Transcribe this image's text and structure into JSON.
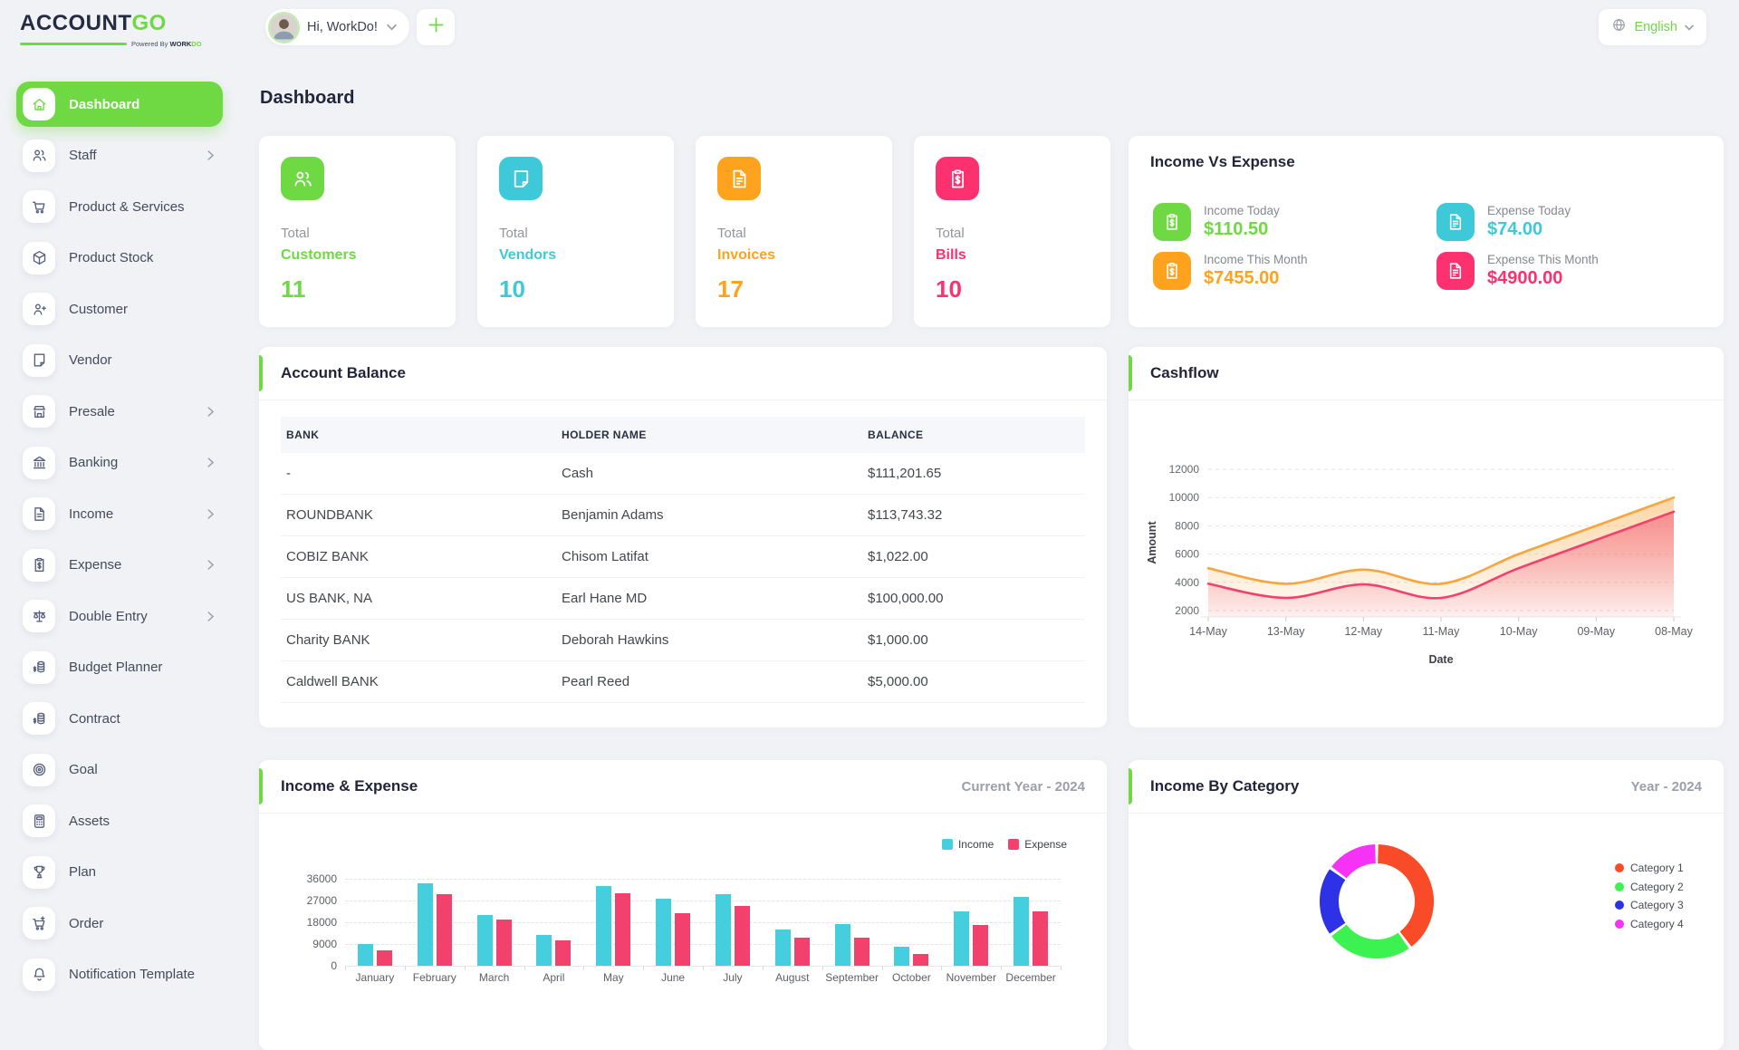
{
  "header": {
    "logo_account": "ACCOUNT",
    "logo_go": "GO",
    "logo_powered_prefix": "Powered By ",
    "logo_powered_brand": "WORK",
    "logo_powered_brand2": "DO",
    "greeting": "Hi, WorkDo!",
    "language_label": "English"
  },
  "page_title": "Dashboard",
  "sidebar": {
    "items": [
      {
        "label": "Dashboard",
        "icon": "home-icon",
        "active": true,
        "has_submenu": false
      },
      {
        "label": "Staff",
        "icon": "users-icon",
        "active": false,
        "has_submenu": true
      },
      {
        "label": "Product & Services",
        "icon": "cart-icon",
        "active": false,
        "has_submenu": false
      },
      {
        "label": "Product Stock",
        "icon": "cube-icon",
        "active": false,
        "has_submenu": false
      },
      {
        "label": "Customer",
        "icon": "user-plus-icon",
        "active": false,
        "has_submenu": false
      },
      {
        "label": "Vendor",
        "icon": "note-icon",
        "active": false,
        "has_submenu": false
      },
      {
        "label": "Presale",
        "icon": "store-icon",
        "active": false,
        "has_submenu": true
      },
      {
        "label": "Banking",
        "icon": "bank-icon",
        "active": false,
        "has_submenu": true
      },
      {
        "label": "Income",
        "icon": "file-text-icon",
        "active": false,
        "has_submenu": true
      },
      {
        "label": "Expense",
        "icon": "clipboard-dollar-icon",
        "active": false,
        "has_submenu": true
      },
      {
        "label": "Double Entry",
        "icon": "scale-icon",
        "active": false,
        "has_submenu": true
      },
      {
        "label": "Budget Planner",
        "icon": "coins-icon",
        "active": false,
        "has_submenu": false
      },
      {
        "label": "Contract",
        "icon": "coins-icon",
        "active": false,
        "has_submenu": false
      },
      {
        "label": "Goal",
        "icon": "target-icon",
        "active": false,
        "has_submenu": false
      },
      {
        "label": "Assets",
        "icon": "calculator-icon",
        "active": false,
        "has_submenu": false
      },
      {
        "label": "Plan",
        "icon": "trophy-icon",
        "active": false,
        "has_submenu": false
      },
      {
        "label": "Order",
        "icon": "cart-plus-icon",
        "active": false,
        "has_submenu": false
      },
      {
        "label": "Notification Template",
        "icon": "bell-icon",
        "active": false,
        "has_submenu": false
      }
    ]
  },
  "stat_cards": [
    {
      "top_label": "Total",
      "label": "Customers",
      "value": "11",
      "color": "#6fd943",
      "icon": "users-icon"
    },
    {
      "top_label": "Total",
      "label": "Vendors",
      "value": "10",
      "color": "#3ec9d9",
      "icon": "note-icon"
    },
    {
      "top_label": "Total",
      "label": "Invoices",
      "value": "17",
      "color": "#ffa21d",
      "icon": "file-invoice-icon"
    },
    {
      "top_label": "Total",
      "label": "Bills",
      "value": "10",
      "color": "#fd316f",
      "icon": "clipboard-dollar-icon"
    }
  ],
  "income_vs_expense": {
    "title": "Income Vs Expense",
    "items": [
      {
        "label": "Income Today",
        "value": "$110.50",
        "color": "#6fd943",
        "icon": "clipboard-dollar-icon"
      },
      {
        "label": "Income This Month",
        "value": "$7455.00",
        "color": "#ffa21d",
        "icon": "clipboard-dollar-icon"
      },
      {
        "label": "Expense Today",
        "value": "$74.00",
        "color": "#3ec9d9",
        "icon": "file-invoice-icon"
      },
      {
        "label": "Expense This Month",
        "value": "$4900.00",
        "color": "#fd316f",
        "icon": "file-invoice-icon"
      }
    ]
  },
  "account_balance": {
    "title": "Account Balance",
    "columns": [
      "BANK",
      "HOLDER NAME",
      "BALANCE"
    ],
    "rows": [
      [
        "-",
        "Cash",
        "$111,201.65"
      ],
      [
        "ROUNDBANK",
        "Benjamin Adams",
        "$113,743.32"
      ],
      [
        "COBIZ BANK",
        "Chisom Latifat",
        "$1,022.00"
      ],
      [
        "US BANK, NA",
        "Earl Hane MD",
        "$100,000.00"
      ],
      [
        "Charity BANK",
        "Deborah Hawkins",
        "$1,000.00"
      ],
      [
        "Caldwell BANK",
        "Pearl Reed",
        "$5,000.00"
      ]
    ]
  },
  "chart_data": [
    {
      "type": "area",
      "title": "Cashflow",
      "xlabel": "Date",
      "ylabel": "Amount",
      "x": [
        "14-May",
        "13-May",
        "12-May",
        "11-May",
        "10-May",
        "09-May",
        "08-May"
      ],
      "ylim": [
        2000,
        12000
      ],
      "yticks": [
        2000,
        4000,
        6000,
        8000,
        10000,
        12000
      ],
      "grid": "dashed",
      "series": [
        {
          "name": "series-orange",
          "color": "#f7a53e",
          "values": [
            5000,
            3900,
            4900,
            3900,
            6000,
            8000,
            10000
          ]
        },
        {
          "name": "series-pink",
          "color": "#f1416c",
          "values": [
            3900,
            2900,
            3850,
            2900,
            5000,
            7000,
            9000
          ]
        }
      ]
    },
    {
      "type": "bar",
      "title": "Income & Expense",
      "subtitle": "Current Year - 2024",
      "categories": [
        "January",
        "February",
        "March",
        "April",
        "May",
        "June",
        "July",
        "August",
        "September",
        "October",
        "November",
        "December"
      ],
      "ylim": [
        0,
        36000
      ],
      "yticks": [
        0,
        9000,
        18000,
        27000,
        36000
      ],
      "legend_position": "top-right",
      "series": [
        {
          "name": "Income",
          "color": "#45cedd",
          "values": [
            9100,
            34000,
            21200,
            12600,
            33000,
            27800,
            29700,
            15000,
            17200,
            7800,
            22700,
            28500
          ]
        },
        {
          "name": "Expense",
          "color": "#f1416c",
          "values": [
            6300,
            29800,
            19000,
            10700,
            29900,
            21900,
            24900,
            11700,
            11700,
            4800,
            16800,
            22600
          ]
        }
      ]
    },
    {
      "type": "pie",
      "title": "Income By Category",
      "subtitle": "Year - 2024",
      "labels": [
        "Category 1",
        "Category 2",
        "Category 3",
        "Category 4"
      ],
      "values": [
        40,
        25,
        20,
        15
      ],
      "colors": [
        "#fa4b28",
        "#3cf250",
        "#2d32e6",
        "#f532f5"
      ],
      "legend_position": "right"
    }
  ]
}
